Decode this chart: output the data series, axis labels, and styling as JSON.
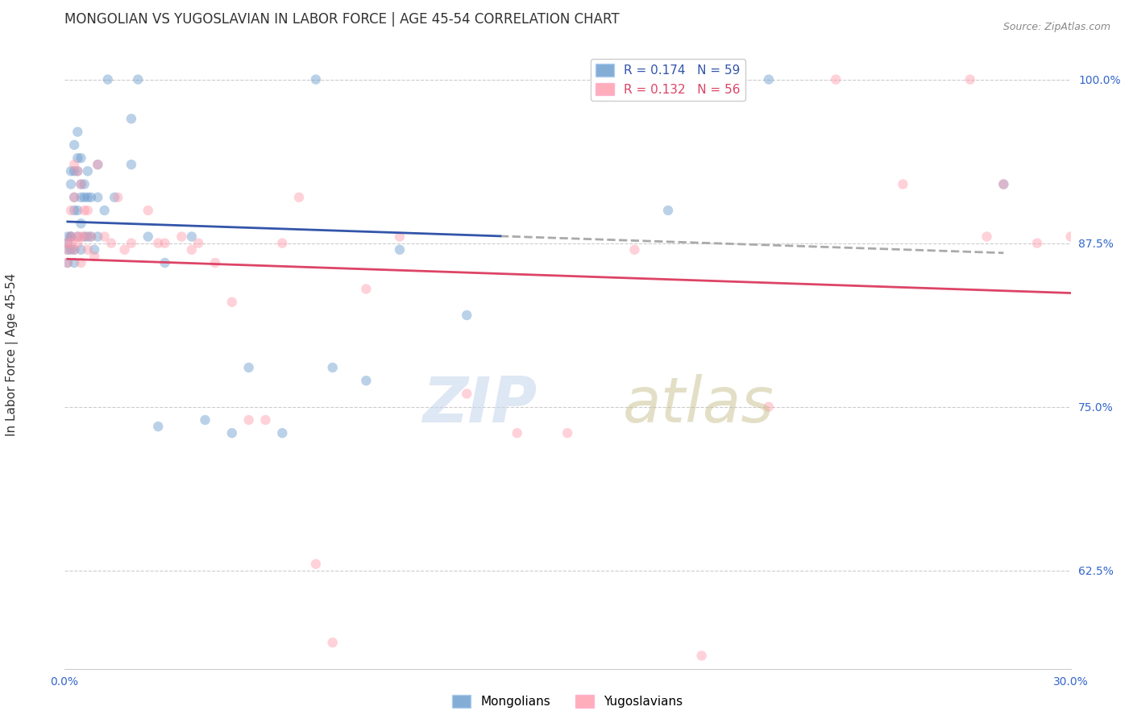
{
  "title": "MONGOLIAN VS YUGOSLAVIAN IN LABOR FORCE | AGE 45-54 CORRELATION CHART",
  "source": "Source: ZipAtlas.com",
  "ylabel": "In Labor Force | Age 45-54",
  "y_tick_labels": [
    "62.5%",
    "75.0%",
    "87.5%",
    "100.0%"
  ],
  "y_tick_values": [
    0.625,
    0.75,
    0.875,
    1.0
  ],
  "xlim": [
    0.0,
    0.3
  ],
  "ylim": [
    0.55,
    1.03
  ],
  "mongolian_R": 0.174,
  "mongolian_N": 59,
  "yugoslavian_R": 0.132,
  "yugoslavian_N": 56,
  "blue_color": "#6699CC",
  "pink_color": "#FF99AA",
  "blue_line_color": "#3355AA",
  "pink_line_color": "#DD4466",
  "mongolian_x": [
    0.001,
    0.001,
    0.001,
    0.001,
    0.002,
    0.002,
    0.002,
    0.002,
    0.002,
    0.003,
    0.003,
    0.003,
    0.003,
    0.003,
    0.003,
    0.004,
    0.004,
    0.004,
    0.004,
    0.004,
    0.005,
    0.005,
    0.005,
    0.005,
    0.005,
    0.006,
    0.006,
    0.006,
    0.007,
    0.007,
    0.007,
    0.008,
    0.008,
    0.009,
    0.01,
    0.01,
    0.01,
    0.012,
    0.013,
    0.015,
    0.02,
    0.02,
    0.022,
    0.025,
    0.028,
    0.03,
    0.038,
    0.042,
    0.05,
    0.055,
    0.065,
    0.075,
    0.08,
    0.09,
    0.1,
    0.12,
    0.18,
    0.21,
    0.28
  ],
  "mongolian_y": [
    0.87,
    0.88,
    0.875,
    0.86,
    0.93,
    0.92,
    0.88,
    0.87,
    0.88,
    0.95,
    0.93,
    0.91,
    0.9,
    0.87,
    0.86,
    0.96,
    0.94,
    0.93,
    0.9,
    0.88,
    0.94,
    0.92,
    0.91,
    0.89,
    0.87,
    0.92,
    0.91,
    0.88,
    0.93,
    0.91,
    0.88,
    0.91,
    0.88,
    0.87,
    0.935,
    0.91,
    0.88,
    0.9,
    1.0,
    0.91,
    0.97,
    0.935,
    1.0,
    0.88,
    0.735,
    0.86,
    0.88,
    0.74,
    0.73,
    0.78,
    0.73,
    1.0,
    0.78,
    0.77,
    0.87,
    0.82,
    0.9,
    1.0,
    0.92
  ],
  "yugoslavian_x": [
    0.001,
    0.001,
    0.001,
    0.002,
    0.002,
    0.002,
    0.003,
    0.003,
    0.003,
    0.004,
    0.004,
    0.004,
    0.005,
    0.005,
    0.005,
    0.006,
    0.006,
    0.007,
    0.007,
    0.008,
    0.009,
    0.01,
    0.012,
    0.014,
    0.016,
    0.018,
    0.02,
    0.025,
    0.028,
    0.03,
    0.035,
    0.038,
    0.04,
    0.045,
    0.05,
    0.055,
    0.06,
    0.065,
    0.07,
    0.075,
    0.08,
    0.09,
    0.1,
    0.12,
    0.135,
    0.15,
    0.17,
    0.19,
    0.21,
    0.23,
    0.25,
    0.27,
    0.275,
    0.28,
    0.29,
    0.3
  ],
  "yugoslavian_y": [
    0.875,
    0.87,
    0.86,
    0.9,
    0.88,
    0.875,
    0.935,
    0.91,
    0.87,
    0.93,
    0.88,
    0.875,
    0.92,
    0.88,
    0.86,
    0.9,
    0.88,
    0.9,
    0.87,
    0.88,
    0.865,
    0.935,
    0.88,
    0.875,
    0.91,
    0.87,
    0.875,
    0.9,
    0.875,
    0.875,
    0.88,
    0.87,
    0.875,
    0.86,
    0.83,
    0.74,
    0.74,
    0.875,
    0.91,
    0.63,
    0.57,
    0.84,
    0.88,
    0.76,
    0.73,
    0.73,
    0.87,
    0.56,
    0.75,
    1.0,
    0.92,
    1.0,
    0.88,
    0.92,
    0.875,
    0.88
  ],
  "background_color": "#FFFFFF",
  "grid_color": "#CCCCCC",
  "axis_color": "#3366CC",
  "title_color": "#333333",
  "title_fontsize": 12,
  "axis_label_fontsize": 11,
  "tick_fontsize": 10,
  "legend_fontsize": 11,
  "scatter_size": 80,
  "scatter_alpha": 0.45,
  "line_width": 2.0
}
